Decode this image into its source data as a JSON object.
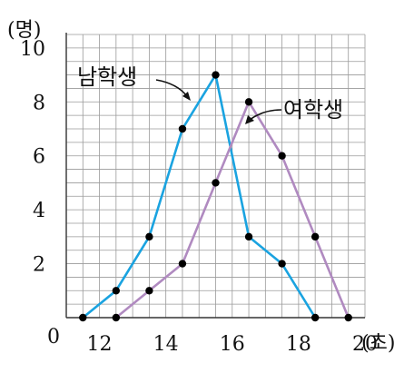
{
  "chart_data": {
    "type": "line",
    "xlabel": "(초)",
    "ylabel": "(명)",
    "xlim": [
      11,
      20
    ],
    "ylim": [
      0,
      10
    ],
    "x_tick_labels": [
      "12",
      "14",
      "16",
      "18",
      "20"
    ],
    "x_ticks": [
      12,
      14,
      16,
      18,
      20
    ],
    "y_tick_labels": [
      "2",
      "4",
      "6",
      "8",
      "10"
    ],
    "y_ticks": [
      2,
      4,
      6,
      8,
      10
    ],
    "origin_label": "0",
    "grid": true,
    "series": [
      {
        "name": "남학생",
        "color": "#1aa3e0",
        "x": [
          11.5,
          12.5,
          13.5,
          14.5,
          15.5,
          16.5,
          17.5,
          18.5
        ],
        "values": [
          0,
          1,
          3,
          7,
          9,
          3,
          2,
          0
        ]
      },
      {
        "name": "여학생",
        "color": "#b08ac0",
        "x": [
          12.5,
          13.5,
          14.5,
          15.5,
          16.5,
          17.5,
          18.5,
          19.5
        ],
        "values": [
          0,
          1,
          2,
          5,
          8,
          6,
          3,
          0
        ]
      }
    ]
  }
}
